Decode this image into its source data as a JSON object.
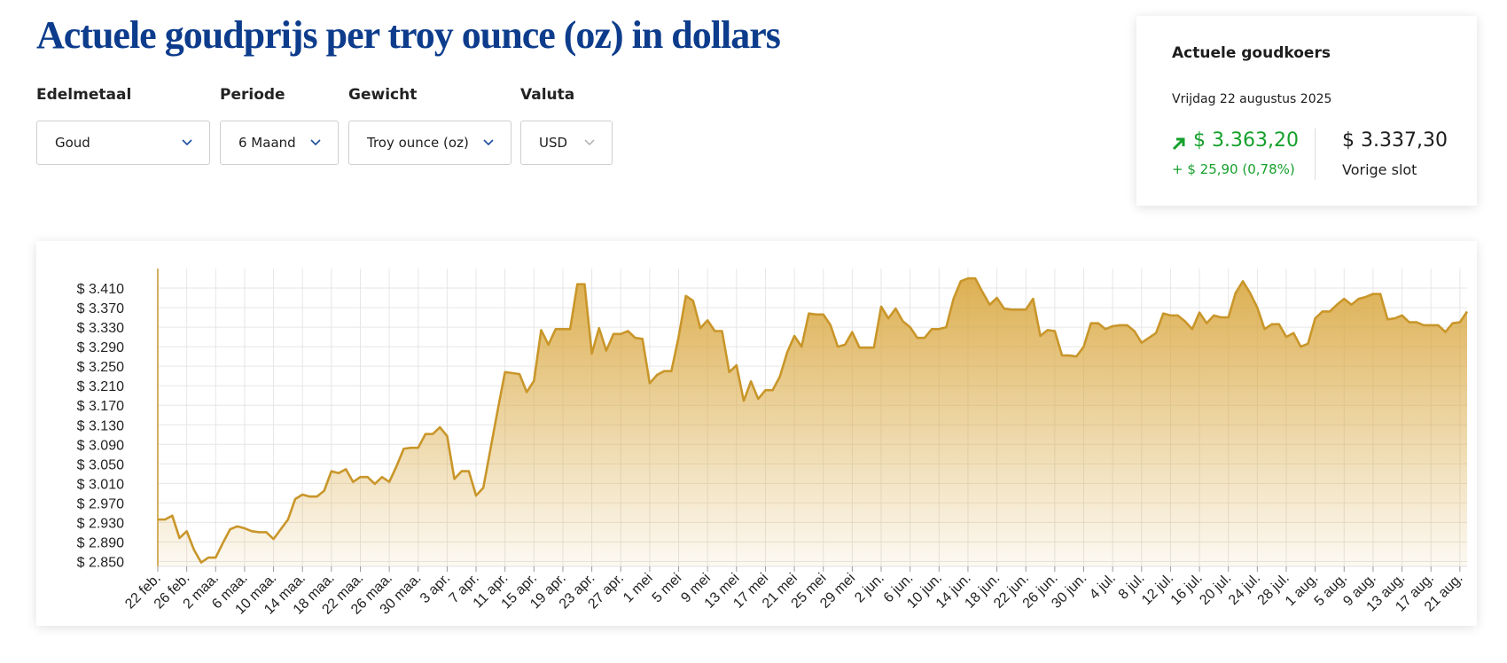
{
  "header": {
    "title": "Actuele goudprijs per troy ounce (oz) in dollars"
  },
  "filters": [
    {
      "label": "Edelmetaal",
      "value": "Goud"
    },
    {
      "label": "Periode",
      "value": "6 Maand"
    },
    {
      "label": "Gewicht",
      "value": "Troy ounce (oz)"
    },
    {
      "label": "Valuta",
      "value": "USD"
    }
  ],
  "card": {
    "title": "Actuele goudkoers",
    "date": "Vrijdag 22 augustus 2025",
    "price": "$ 3.363,20",
    "change": "+ $ 25,90 (0,78%)",
    "previous": "$ 3.337,30",
    "previous_label": "Vorige slot"
  },
  "chart_data": {
    "type": "area",
    "color": "#c9962a",
    "grid": true,
    "ylim": [
      2840,
      3450
    ],
    "yticks": [
      {
        "value": 2850,
        "label": "$ 2.850"
      },
      {
        "value": 2890,
        "label": "$ 2.890"
      },
      {
        "value": 2930,
        "label": "$ 2.930"
      },
      {
        "value": 2970,
        "label": "$ 2.970"
      },
      {
        "value": 3010,
        "label": "$ 3.010"
      },
      {
        "value": 3050,
        "label": "$ 3.050"
      },
      {
        "value": 3090,
        "label": "$ 3.090"
      },
      {
        "value": 3130,
        "label": "$ 3.130"
      },
      {
        "value": 3170,
        "label": "$ 3.170"
      },
      {
        "value": 3210,
        "label": "$ 3.210"
      },
      {
        "value": 3250,
        "label": "$ 3.250"
      },
      {
        "value": 3290,
        "label": "$ 3.290"
      },
      {
        "value": 3330,
        "label": "$ 3.330"
      },
      {
        "value": 3370,
        "label": "$ 3.370"
      },
      {
        "value": 3410,
        "label": "$ 3.410"
      }
    ],
    "categories": [
      "22 feb.",
      null,
      null,
      null,
      "26 feb.",
      null,
      null,
      null,
      "2 maa.",
      null,
      null,
      null,
      "6 maa.",
      null,
      null,
      null,
      "10 maa.",
      null,
      null,
      null,
      "14 maa.",
      null,
      null,
      null,
      "18 maa.",
      null,
      null,
      null,
      "22 maa.",
      null,
      null,
      null,
      "26 maa.",
      null,
      null,
      null,
      "30 maa.",
      null,
      null,
      null,
      "3 apr.",
      null,
      null,
      null,
      "7 apr.",
      null,
      null,
      null,
      "11 apr.",
      null,
      null,
      null,
      "15 apr.",
      null,
      null,
      null,
      "19 apr.",
      null,
      null,
      null,
      "23 apr.",
      null,
      null,
      null,
      "27 apr.",
      null,
      null,
      null,
      "1 mei",
      null,
      null,
      null,
      "5 mei",
      null,
      null,
      null,
      "9 mei",
      null,
      null,
      null,
      "13 mei",
      null,
      null,
      null,
      "17 mei",
      null,
      null,
      null,
      "21 mei",
      null,
      null,
      null,
      "25 mei",
      null,
      null,
      null,
      "29 mei",
      null,
      null,
      null,
      "2 jun.",
      null,
      null,
      null,
      "6 jun.",
      null,
      null,
      null,
      "10 jun.",
      null,
      null,
      null,
      "14 jun.",
      null,
      null,
      null,
      "18 jun.",
      null,
      null,
      null,
      "22 jun.",
      null,
      null,
      null,
      "26 jun.",
      null,
      null,
      null,
      "30 jun.",
      null,
      null,
      null,
      "4 jul.",
      null,
      null,
      null,
      "8 jul.",
      null,
      null,
      null,
      "12 jul.",
      null,
      null,
      null,
      "16 jul.",
      null,
      null,
      null,
      "20 jul.",
      null,
      null,
      null,
      "24 jul.",
      null,
      null,
      null,
      "28 jul.",
      null,
      null,
      null,
      "1 aug.",
      null,
      null,
      null,
      "5 aug.",
      null,
      null,
      null,
      "9 aug.",
      null,
      null,
      null,
      "13 aug.",
      null,
      null,
      null,
      "17 aug.",
      null,
      null,
      null,
      "21 aug.",
      null
    ],
    "values": [
      2936,
      2936,
      2944,
      2898,
      2912,
      2874,
      2848,
      2858,
      2858,
      2888,
      2916,
      2922,
      2918,
      2912,
      2910,
      2910,
      2896,
      2916,
      2936,
      2978,
      2987,
      2983,
      2983,
      2995,
      3035,
      3031,
      3039,
      3013,
      3023,
      3023,
      3009,
      3023,
      3013,
      3045,
      3081,
      3083,
      3083,
      3111,
      3111,
      3125,
      3107,
      3019,
      3035,
      3035,
      2985,
      3001,
      3081,
      3161,
      3238,
      3236,
      3234,
      3197,
      3220,
      3324,
      3294,
      3326,
      3326,
      3326,
      3418,
      3418,
      3276,
      3328,
      3282,
      3316,
      3316,
      3322,
      3308,
      3306,
      3215,
      3232,
      3240,
      3240,
      3310,
      3394,
      3384,
      3328,
      3344,
      3322,
      3322,
      3238,
      3252,
      3179,
      3219,
      3183,
      3201,
      3201,
      3229,
      3278,
      3312,
      3290,
      3358,
      3356,
      3356,
      3334,
      3290,
      3294,
      3320,
      3288,
      3288,
      3288,
      3372,
      3348,
      3368,
      3342,
      3330,
      3308,
      3308,
      3326,
      3326,
      3330,
      3388,
      3424,
      3430,
      3430,
      3402,
      3376,
      3390,
      3368,
      3366,
      3366,
      3366,
      3388,
      3312,
      3324,
      3322,
      3272,
      3272,
      3270,
      3290,
      3338,
      3338,
      3326,
      3332,
      3334,
      3334,
      3322,
      3298,
      3308,
      3318,
      3358,
      3354,
      3354,
      3342,
      3326,
      3360,
      3338,
      3354,
      3350,
      3350,
      3400,
      3424,
      3400,
      3370,
      3326,
      3336,
      3336,
      3310,
      3318,
      3290,
      3296,
      3348,
      3362,
      3362,
      3376,
      3388,
      3376,
      3388,
      3392,
      3398,
      3398,
      3346,
      3348,
      3354,
      3340,
      3340,
      3334,
      3334,
      3334,
      3320,
      3338,
      3340,
      3362
    ]
  }
}
